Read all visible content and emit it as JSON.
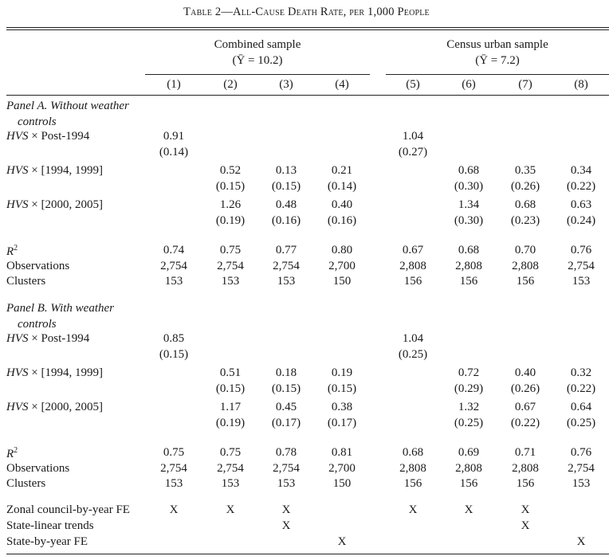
{
  "table": {
    "title": "Table 2—All-Cause Death Rate, per 1,000 People",
    "groups": [
      {
        "name": "Combined sample",
        "mean": "(Ȳ = 10.2)"
      },
      {
        "name": "Census urban sample",
        "mean": "(Ȳ = 7.2)"
      }
    ],
    "columns": [
      "(1)",
      "(2)",
      "(3)",
      "(4)",
      "(5)",
      "(6)",
      "(7)",
      "(8)"
    ],
    "panels": [
      {
        "title_line1": "Panel A. Without weather",
        "title_line2": "controls",
        "rows": [
          {
            "label": "HVS × Post-1994",
            "coef": [
              "0.91",
              "",
              "",
              "",
              "1.04",
              "",
              "",
              ""
            ],
            "se": [
              "(0.14)",
              "",
              "",
              "",
              "(0.27)",
              "",
              "",
              ""
            ]
          },
          {
            "label": "HVS × [1994, 1999]",
            "coef": [
              "",
              "0.52",
              "0.13",
              "0.21",
              "",
              "0.68",
              "0.35",
              "0.34"
            ],
            "se": [
              "",
              "(0.15)",
              "(0.15)",
              "(0.14)",
              "",
              "(0.30)",
              "(0.26)",
              "(0.22)"
            ]
          },
          {
            "label": "HVS × [2000, 2005]",
            "coef": [
              "",
              "1.26",
              "0.48",
              "0.40",
              "",
              "1.34",
              "0.68",
              "0.63"
            ],
            "se": [
              "",
              "(0.19)",
              "(0.16)",
              "(0.16)",
              "",
              "(0.30)",
              "(0.23)",
              "(0.24)"
            ]
          }
        ],
        "stats": {
          "r2_label": "R²",
          "r2": [
            "0.74",
            "0.75",
            "0.77",
            "0.80",
            "0.67",
            "0.68",
            "0.70",
            "0.76"
          ],
          "obs_label": "Observations",
          "obs": [
            "2,754",
            "2,754",
            "2,754",
            "2,700",
            "2,808",
            "2,808",
            "2,808",
            "2,754"
          ],
          "clusters_label": "Clusters",
          "clusters": [
            "153",
            "153",
            "153",
            "150",
            "156",
            "156",
            "156",
            "153"
          ]
        }
      },
      {
        "title_line1": "Panel B. With weather",
        "title_line2": "controls",
        "rows": [
          {
            "label": "HVS × Post-1994",
            "coef": [
              "0.85",
              "",
              "",
              "",
              "1.04",
              "",
              "",
              ""
            ],
            "se": [
              "(0.15)",
              "",
              "",
              "",
              "(0.25)",
              "",
              "",
              ""
            ]
          },
          {
            "label": "HVS × [1994, 1999]",
            "coef": [
              "",
              "0.51",
              "0.18",
              "0.19",
              "",
              "0.72",
              "0.40",
              "0.32"
            ],
            "se": [
              "",
              "(0.15)",
              "(0.15)",
              "(0.15)",
              "",
              "(0.29)",
              "(0.26)",
              "(0.22)"
            ]
          },
          {
            "label": "HVS × [2000, 2005]",
            "coef": [
              "",
              "1.17",
              "0.45",
              "0.38",
              "",
              "1.32",
              "0.67",
              "0.64"
            ],
            "se": [
              "",
              "(0.19)",
              "(0.17)",
              "(0.17)",
              "",
              "(0.25)",
              "(0.22)",
              "(0.25)"
            ]
          }
        ],
        "stats": {
          "r2_label": "R²",
          "r2": [
            "0.75",
            "0.75",
            "0.78",
            "0.81",
            "0.68",
            "0.69",
            "0.71",
            "0.76"
          ],
          "obs_label": "Observations",
          "obs": [
            "2,754",
            "2,754",
            "2,754",
            "2,700",
            "2,808",
            "2,808",
            "2,808",
            "2,754"
          ],
          "clusters_label": "Clusters",
          "clusters": [
            "153",
            "153",
            "153",
            "150",
            "156",
            "156",
            "156",
            "153"
          ]
        }
      }
    ],
    "fixed_effects": [
      {
        "label": "Zonal council-by-year FE",
        "marks": [
          "X",
          "X",
          "X",
          "",
          "X",
          "X",
          "X",
          ""
        ]
      },
      {
        "label": "State-linear trends",
        "marks": [
          "",
          "",
          "X",
          "",
          "",
          "",
          "X",
          ""
        ]
      },
      {
        "label": "State-by-year FE",
        "marks": [
          "",
          "",
          "",
          "X",
          "",
          "",
          "",
          "X"
        ]
      }
    ]
  }
}
